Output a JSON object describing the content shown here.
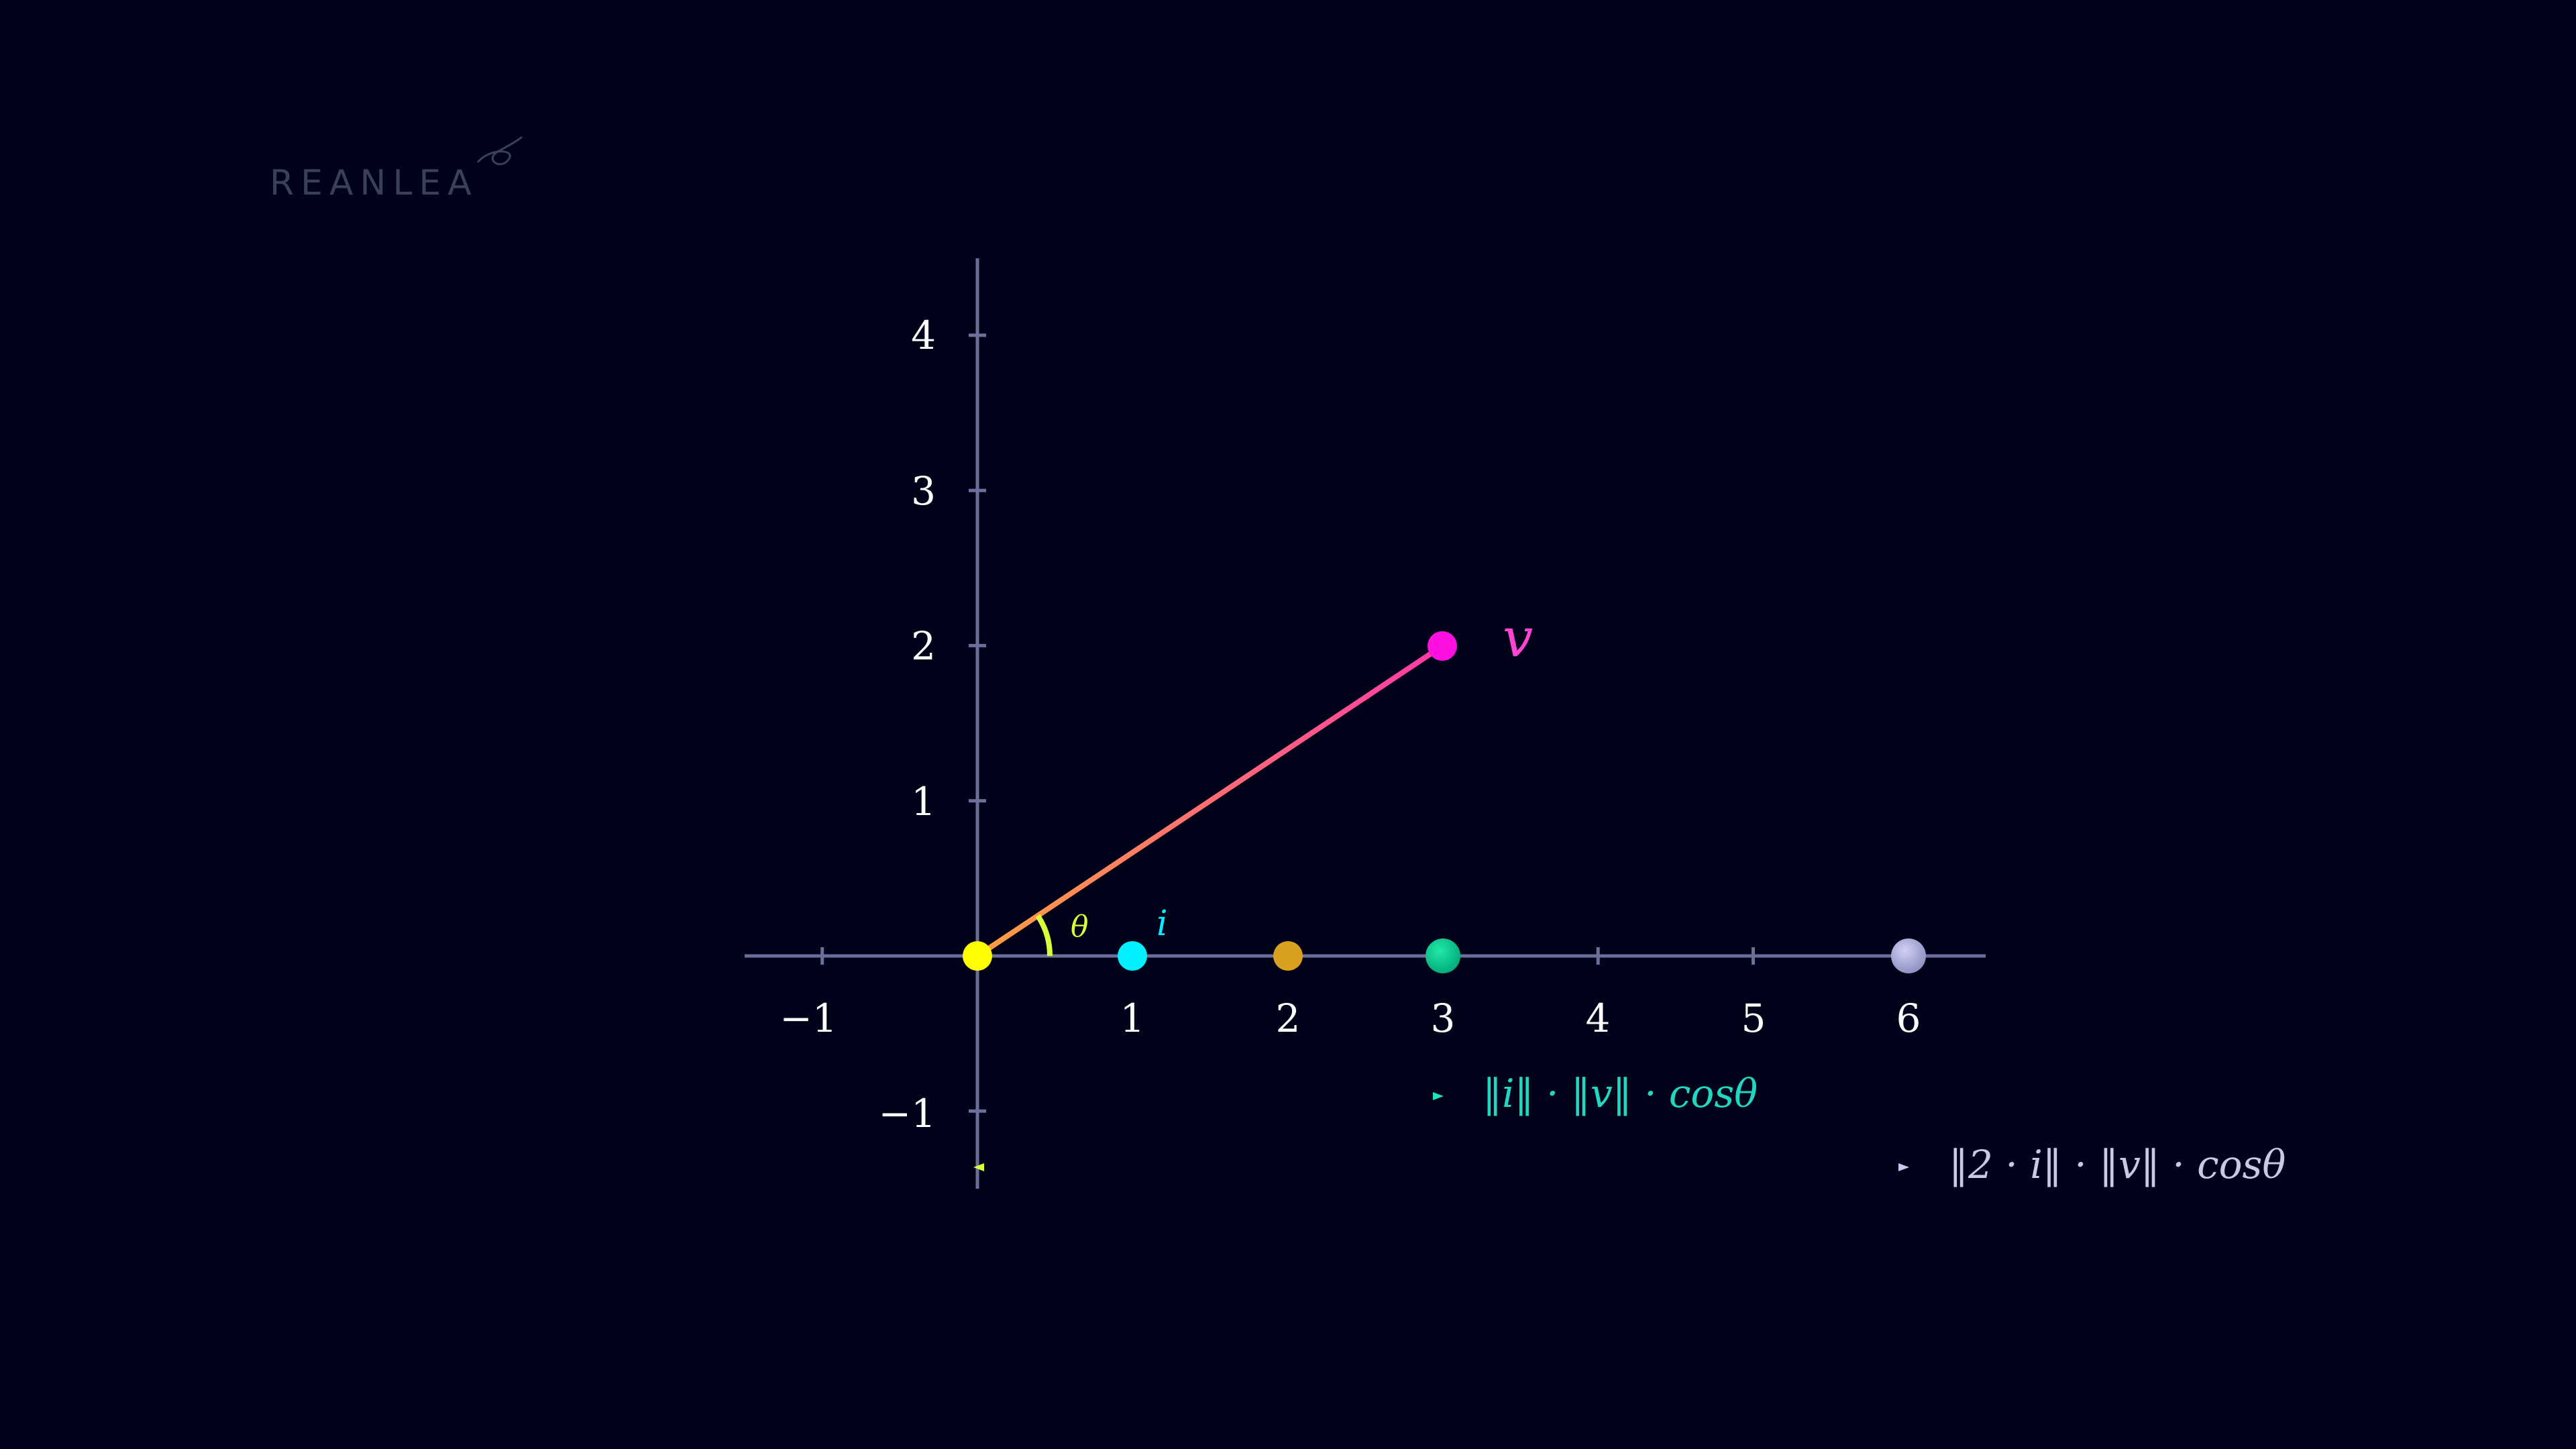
{
  "logo": {
    "text": "REANLEA"
  },
  "axes": {
    "x_range": [
      -1.5,
      6.5
    ],
    "y_range": [
      -1.5,
      4.5
    ],
    "x_ticks": [
      -1,
      1,
      2,
      3,
      4,
      5,
      6
    ],
    "y_ticks": [
      -1,
      1,
      2,
      3,
      4
    ],
    "x_tick_labels": [
      "−1",
      "1",
      "2",
      "3",
      "4",
      "5",
      "6"
    ],
    "y_tick_labels": [
      "−1",
      "1",
      "2",
      "3",
      "4"
    ],
    "axis_color": "#6b6f99"
  },
  "vector_v": {
    "from": [
      0,
      0
    ],
    "to": [
      3,
      2
    ],
    "label": "v",
    "color_start": "#ffa040",
    "color_end": "#ff3aa8",
    "label_color": "#ff44d6"
  },
  "angle": {
    "label": "θ",
    "color": "#d8ff3a"
  },
  "points": [
    {
      "name": "origin",
      "x": 0,
      "y": 0,
      "color": "#ffff00"
    },
    {
      "name": "i",
      "x": 1,
      "y": 0,
      "color": "#00f0ff",
      "label": "i"
    },
    {
      "name": "two-i",
      "x": 2,
      "y": 0,
      "color": "#d9a020"
    },
    {
      "name": "projection",
      "x": 3,
      "y": 0,
      "color": "#00c890"
    },
    {
      "name": "scaled-projection",
      "x": 6,
      "y": 0,
      "color": "#a9a9d6"
    }
  ],
  "projections": [
    {
      "name": "projection-i",
      "y": -0.9,
      "x_end": 3,
      "color_start": "#c8ff3a",
      "color_end": "#18e6c0",
      "label": "‖i‖ · ‖v‖ · cosθ",
      "label_color": "#20d8c0"
    },
    {
      "name": "projection-2i",
      "y": -1.35,
      "x_end": 6,
      "color_start": "#d8ff3a",
      "color_end": "#c9c9f0",
      "label": "‖2 · i‖ · ‖v‖ · cosθ",
      "label_color": "#c9c9e6"
    }
  ]
}
